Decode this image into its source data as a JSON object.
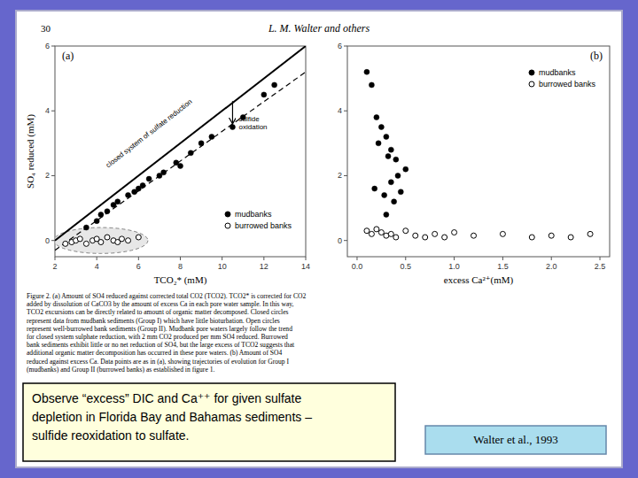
{
  "background_color": "#6666cc",
  "page_number": "30",
  "header": "L. M. Walter and others",
  "figure_caption": "Figure 2. (a) Amount of SO4 reduced against corrected total CO2 (TCO2). TCO2* is corrected for CO2\nadded by dissolution of CaCO3 by the amount of excess Ca in each pore water sample. In this way,\nTCO2 excursions can be directly related to amount of organic matter decomposed. Closed circles\nrepresent data from mudbank sediments (Group I) which have little bioturbation. Open circles\nrepresent well-burrowed bank sediments (Group II). Mudbank pore waters largely follow the trend\nfor closed system sulphate reduction, with 2 mm CO2 produced per mm SO4 reduced. Burrowed\nbank sediments exhibit little or no net reduction of SO4, but the large excess of TCO2 suggests that\nadditional organic matter decomposition has occurred in these pore waters. (b) Amount of SO4\nreduced against excess Ca. Data points are as in (a), showing trajectories of evolution for Group I\n(mudbanks) and Group II (burrowed banks) as established in figure 1.",
  "callout": [
    "Observe “excess” DIC and Ca⁺⁺ for given sulfate",
    "depletion in Florida Bay and Bahamas sediments –",
    "sulfide reoxidation to sulfate."
  ],
  "callout_color": "#ffffdd",
  "citation": "Walter et al., 1993",
  "citation_color": "#aaddee",
  "chart_data": [
    {
      "type": "scatter",
      "title": "(a)",
      "x_label": "TCO₂* (mM)",
      "y_label": "SO₄ reduced (mM)",
      "xlim": [
        2,
        14
      ],
      "ylim": [
        -0.5,
        6
      ],
      "xticks": [
        2,
        4,
        6,
        8,
        10,
        12,
        14
      ],
      "yticks": [
        0,
        2,
        4,
        6
      ],
      "grid": false,
      "legend": "lower right",
      "series": [
        {
          "type": "line",
          "line_style": "solid",
          "color": "#000000",
          "x": [
            2,
            14
          ],
          "values": [
            0,
            6.0
          ]
        },
        {
          "type": "line",
          "line_style": "dashed",
          "color": "#000000",
          "x": [
            2,
            14
          ],
          "values": [
            -0.3,
            5.2
          ]
        },
        {
          "name": "mudbanks",
          "marker": "circle",
          "color": "#000000",
          "x": [
            3.5,
            4.2,
            4.8,
            5.5,
            6.0,
            6.5,
            7.2,
            7.8,
            8.5,
            9.0,
            10.5,
            12.0,
            12.5,
            4.0,
            4.5,
            5.0,
            5.8,
            6.2,
            7.0,
            8.0,
            9.5,
            11.0
          ],
          "values": [
            0.4,
            0.8,
            1.1,
            1.4,
            1.6,
            1.9,
            2.1,
            2.4,
            2.7,
            3.0,
            3.5,
            4.5,
            4.8,
            0.6,
            0.9,
            1.2,
            1.5,
            1.7,
            2.0,
            2.3,
            3.2,
            3.8
          ]
        },
        {
          "name": "burrowed banks",
          "marker": "open-circle",
          "color": "#000000",
          "x": [
            2.5,
            2.8,
            3.0,
            3.2,
            3.5,
            3.8,
            4.0,
            4.2,
            4.5,
            4.8,
            5.0,
            5.2,
            5.5,
            6.0
          ],
          "values": [
            -0.1,
            -0.05,
            0.0,
            0.05,
            -0.1,
            0.0,
            0.05,
            -0.05,
            0.1,
            0.0,
            -0.05,
            0.05,
            0.0,
            0.1
          ]
        }
      ],
      "shapes": [
        {
          "type": "ellipse",
          "color": "#dddddd",
          "x": 4.2,
          "y": 0.0,
          "width": 4.5,
          "height": 0.8
        }
      ],
      "annotations": [
        {
          "text": "closed system of sulfate reduction",
          "x": 6.5,
          "y": 3.3
        },
        {
          "text": "sulfide\noxidation",
          "x": 10.8,
          "y": 3.9
        }
      ],
      "arrows": [
        {
          "x_from": 10.5,
          "y_from": 4.3,
          "x": 10.5,
          "y": 3.6
        }
      ]
    },
    {
      "type": "scatter",
      "title": "(b)",
      "x_label": "excess Ca²⁺(mM)",
      "xlim": [
        -0.1,
        2.6
      ],
      "ylim": [
        -0.5,
        6
      ],
      "xticks": [
        {
          "value": 0,
          "label": "0.0"
        },
        0.5,
        {
          "value": 1.0,
          "label": "1.0"
        },
        1.5,
        {
          "value": 2.0,
          "label": "2.0"
        },
        2.5
      ],
      "yticks": [
        0,
        2,
        4,
        6
      ],
      "grid": false,
      "legend": "upper right",
      "series": [
        {
          "name": "mudbanks",
          "marker": "circle",
          "color": "#000000",
          "x": [
            0.1,
            0.15,
            0.2,
            0.25,
            0.3,
            0.35,
            0.4,
            0.42,
            0.45,
            0.5,
            0.35,
            0.38,
            0.3,
            0.28,
            0.32,
            0.22,
            0.18
          ],
          "values": [
            5.2,
            4.8,
            3.8,
            3.5,
            3.2,
            2.8,
            2.5,
            2.0,
            1.5,
            2.2,
            1.8,
            1.2,
            0.8,
            1.4,
            2.6,
            3.0,
            1.6
          ]
        },
        {
          "name": "burrowed banks",
          "marker": "open-circle",
          "color": "#000000",
          "x": [
            0.1,
            0.15,
            0.2,
            0.25,
            0.3,
            0.35,
            0.4,
            0.5,
            0.6,
            0.7,
            0.8,
            0.9,
            1.0,
            1.2,
            1.5,
            1.8,
            2.0,
            2.2,
            2.4
          ],
          "values": [
            0.3,
            0.2,
            0.35,
            0.25,
            0.15,
            0.2,
            0.1,
            0.3,
            0.15,
            0.1,
            0.2,
            0.1,
            0.25,
            0.15,
            0.2,
            0.1,
            0.15,
            0.1,
            0.2
          ]
        }
      ]
    }
  ]
}
